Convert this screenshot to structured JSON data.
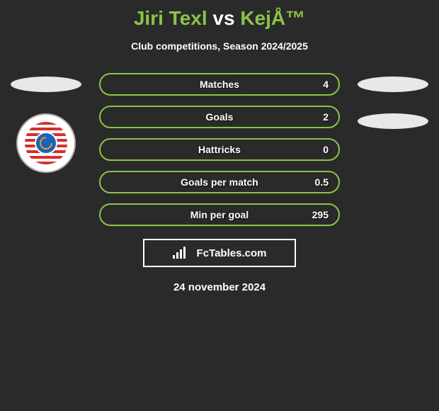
{
  "title": {
    "part1": "Jiri Texl",
    "vs": "vs",
    "part2": "KejÅ™"
  },
  "subtitle": "Club competitions, Season 2024/2025",
  "stats": [
    {
      "label": "Matches",
      "value": "4"
    },
    {
      "label": "Goals",
      "value": "2"
    },
    {
      "label": "Hattricks",
      "value": "0"
    },
    {
      "label": "Goals per match",
      "value": "0.5"
    },
    {
      "label": "Min per goal",
      "value": "295"
    }
  ],
  "footer": {
    "logo_text": "FcTables.com",
    "date": "24 november 2024"
  },
  "colors": {
    "background": "#2a2a2a",
    "accent": "#8bc34a",
    "text": "#ffffff",
    "ellipse": "#e8e8e8",
    "badge_red": "#d32f2f",
    "badge_blue": "#1565c0",
    "badge_orange": "#ff9800"
  }
}
